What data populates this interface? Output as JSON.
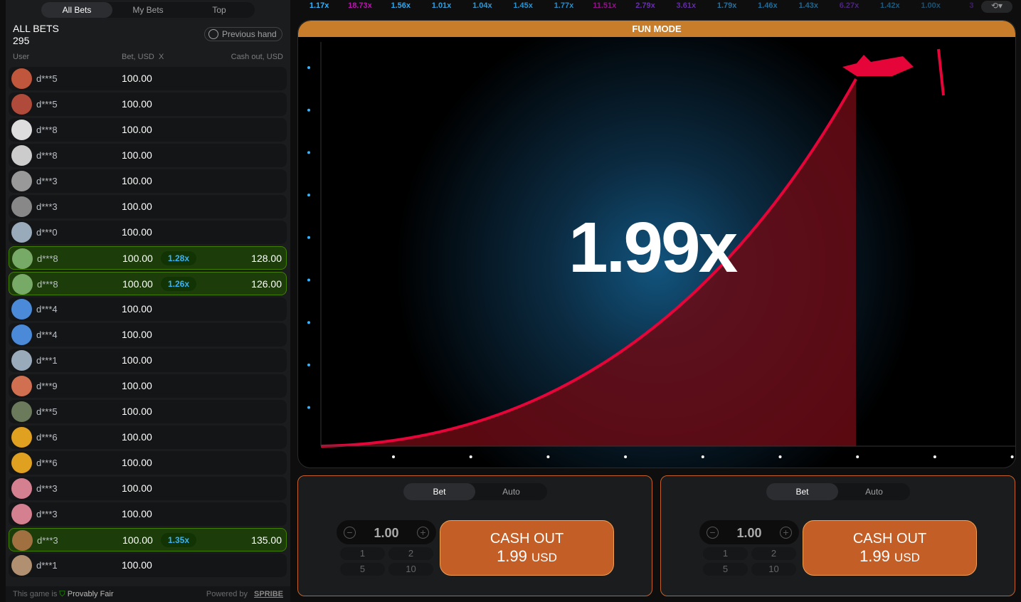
{
  "history": {
    "multipliers": [
      "1.17x",
      "18.73x",
      "1.56x",
      "1.01x",
      "1.04x",
      "1.45x",
      "1.77x",
      "11.51x",
      "2.79x",
      "3.61x",
      "1.79x",
      "1.46x",
      "1.43x",
      "6.27x",
      "1.42x",
      "1.00x",
      "3"
    ],
    "colors": {
      "low": "#34b4ff",
      "mid": "#913ef8",
      "high": "#c017b4"
    }
  },
  "sidebar": {
    "tabs": [
      "All Bets",
      "My Bets",
      "Top"
    ],
    "title": "ALL BETS",
    "count": "295",
    "previous_hand": "Previous hand",
    "columns": {
      "user": "User",
      "bet": "Bet, USD",
      "x": "X",
      "cashout": "Cash out, USD"
    },
    "rows": [
      {
        "user": "d***5",
        "bet": "100.00"
      },
      {
        "user": "d***5",
        "bet": "100.00"
      },
      {
        "user": "d***8",
        "bet": "100.00"
      },
      {
        "user": "d***8",
        "bet": "100.00"
      },
      {
        "user": "d***3",
        "bet": "100.00"
      },
      {
        "user": "d***3",
        "bet": "100.00"
      },
      {
        "user": "d***0",
        "bet": "100.00"
      },
      {
        "user": "d***8",
        "bet": "100.00",
        "mult": "1.28x",
        "cashout": "128.00"
      },
      {
        "user": "d***8",
        "bet": "100.00",
        "mult": "1.26x",
        "cashout": "126.00"
      },
      {
        "user": "d***4",
        "bet": "100.00"
      },
      {
        "user": "d***4",
        "bet": "100.00"
      },
      {
        "user": "d***1",
        "bet": "100.00"
      },
      {
        "user": "d***9",
        "bet": "100.00"
      },
      {
        "user": "d***5",
        "bet": "100.00"
      },
      {
        "user": "d***6",
        "bet": "100.00"
      },
      {
        "user": "d***6",
        "bet": "100.00"
      },
      {
        "user": "d***3",
        "bet": "100.00"
      },
      {
        "user": "d***3",
        "bet": "100.00"
      },
      {
        "user": "d***3",
        "bet": "100.00",
        "mult": "1.35x",
        "cashout": "135.00"
      },
      {
        "user": "d***1",
        "bet": "100.00"
      }
    ],
    "footer": {
      "prefix": "This game is",
      "fair": "Provably Fair",
      "powered": "Powered by",
      "brand": "SPRIBE"
    }
  },
  "game": {
    "mode": "FUN MODE",
    "multiplier": "1.99x",
    "accent": "#e50539"
  },
  "panels": [
    {
      "tabs": [
        "Bet",
        "Auto"
      ],
      "amount": "1.00",
      "quick": [
        "1",
        "2",
        "5",
        "10"
      ],
      "cashout_label": "CASH OUT",
      "cashout_value": "1.99",
      "currency": "USD"
    },
    {
      "tabs": [
        "Bet",
        "Auto"
      ],
      "amount": "1.00",
      "quick": [
        "1",
        "2",
        "5",
        "10"
      ],
      "cashout_label": "CASH OUT",
      "cashout_value": "1.99",
      "currency": "USD"
    }
  ]
}
